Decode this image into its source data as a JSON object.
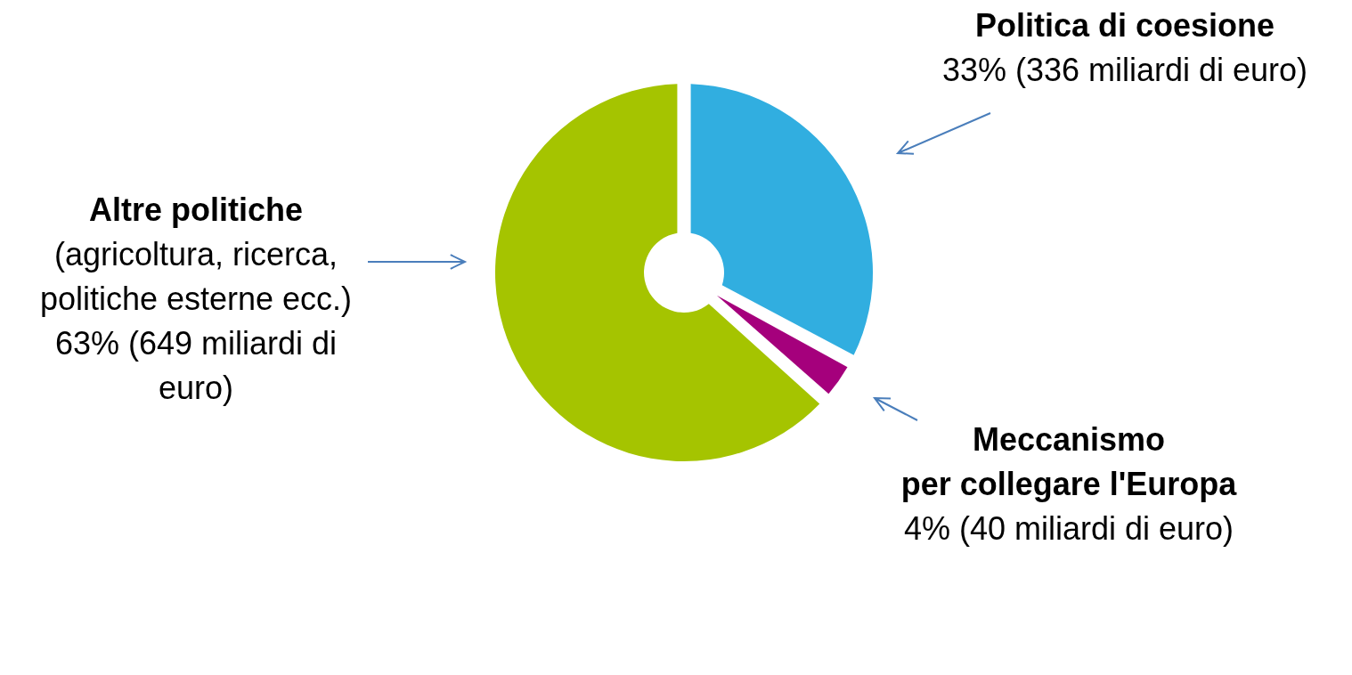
{
  "chart_data": {
    "type": "donut",
    "categories": [
      "Politica di coesione",
      "Meccanismo per collegare l'Europa",
      "Altre politiche"
    ],
    "values": [
      336,
      40,
      649
    ],
    "colors": [
      "#31aee0",
      "#a5007c",
      "#a5c400"
    ],
    "value_labels": [
      "33% (336 miliardi di euro)",
      "4% (40 miliardi di euro)",
      "(agricoltura, ricerca, politiche esterne ecc.) 63% (649 miliardi di euro)"
    ]
  }
}
